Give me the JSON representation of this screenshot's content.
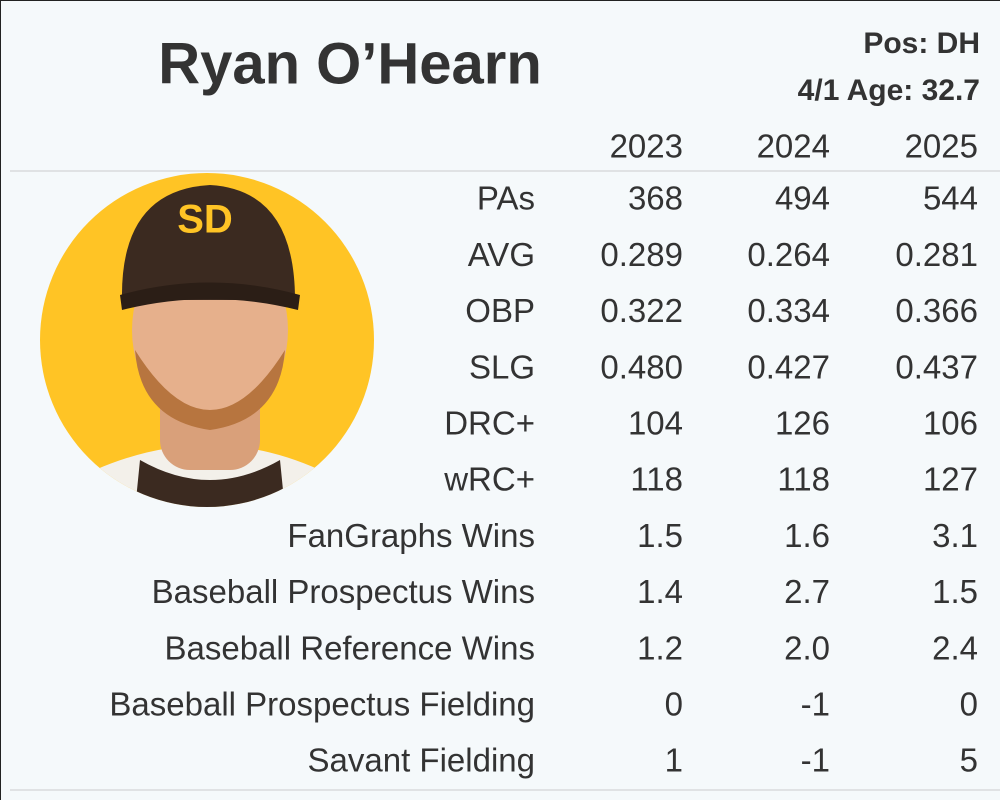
{
  "header": {
    "name": "Ryan O’Hearn",
    "position": "Pos: DH",
    "age": "4/1 Age: 32.7"
  },
  "table": {
    "columns": [
      "2023",
      "2024",
      "2025"
    ],
    "rows": [
      {
        "label": "PAs",
        "values": [
          "368",
          "494",
          "544"
        ]
      },
      {
        "label": "AVG",
        "values": [
          "0.289",
          "0.264",
          "0.281"
        ]
      },
      {
        "label": "OBP",
        "values": [
          "0.322",
          "0.334",
          "0.366"
        ]
      },
      {
        "label": "SLG",
        "values": [
          "0.480",
          "0.427",
          "0.437"
        ]
      },
      {
        "label": "DRC+",
        "values": [
          "104",
          "126",
          "106"
        ]
      },
      {
        "label": "wRC+",
        "values": [
          "118",
          "118",
          "127"
        ]
      },
      {
        "label": "FanGraphs Wins",
        "values": [
          "1.5",
          "1.6",
          "3.1"
        ]
      },
      {
        "label": "Baseball Prospectus Wins",
        "values": [
          "1.4",
          "2.7",
          "1.5"
        ]
      },
      {
        "label": "Baseball Reference Wins",
        "values": [
          "1.2",
          "2.0",
          "2.4"
        ]
      },
      {
        "label": "Baseball Prospectus Fielding",
        "values": [
          "0",
          "-1",
          "0"
        ]
      },
      {
        "label": "Savant Fielding",
        "values": [
          "1",
          "-1",
          "5"
        ]
      }
    ]
  }
}
